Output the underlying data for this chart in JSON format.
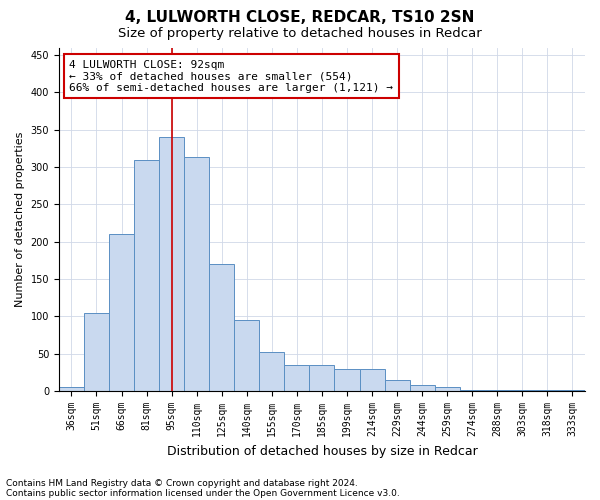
{
  "title1": "4, LULWORTH CLOSE, REDCAR, TS10 2SN",
  "title2": "Size of property relative to detached houses in Redcar",
  "xlabel": "Distribution of detached houses by size in Redcar",
  "ylabel": "Number of detached properties",
  "categories": [
    "36sqm",
    "51sqm",
    "66sqm",
    "81sqm",
    "95sqm",
    "110sqm",
    "125sqm",
    "140sqm",
    "155sqm",
    "170sqm",
    "185sqm",
    "199sqm",
    "214sqm",
    "229sqm",
    "244sqm",
    "259sqm",
    "274sqm",
    "288sqm",
    "303sqm",
    "318sqm",
    "333sqm"
  ],
  "values": [
    5,
    105,
    210,
    310,
    340,
    313,
    170,
    95,
    52,
    35,
    35,
    30,
    30,
    15,
    8,
    5,
    2,
    1,
    1,
    1,
    1
  ],
  "bar_color": "#c9d9ef",
  "bar_edge_color": "#5a8fc3",
  "vline_x_index": 4,
  "vline_color": "#cc0000",
  "annotation_line1": "4 LULWORTH CLOSE: 92sqm",
  "annotation_line2": "← 33% of detached houses are smaller (554)",
  "annotation_line3": "66% of semi-detached houses are larger (1,121) →",
  "annotation_box_facecolor": "white",
  "annotation_box_edgecolor": "#cc0000",
  "ylim": [
    0,
    460
  ],
  "yticks": [
    0,
    50,
    100,
    150,
    200,
    250,
    300,
    350,
    400,
    450
  ],
  "footnote1": "Contains HM Land Registry data © Crown copyright and database right 2024.",
  "footnote2": "Contains public sector information licensed under the Open Government Licence v3.0.",
  "title1_fontsize": 11,
  "title2_fontsize": 9.5,
  "xlabel_fontsize": 9,
  "ylabel_fontsize": 8,
  "tick_fontsize": 7,
  "footnote_fontsize": 6.5,
  "annotation_fontsize": 8,
  "grid_color": "#d0d8e8"
}
